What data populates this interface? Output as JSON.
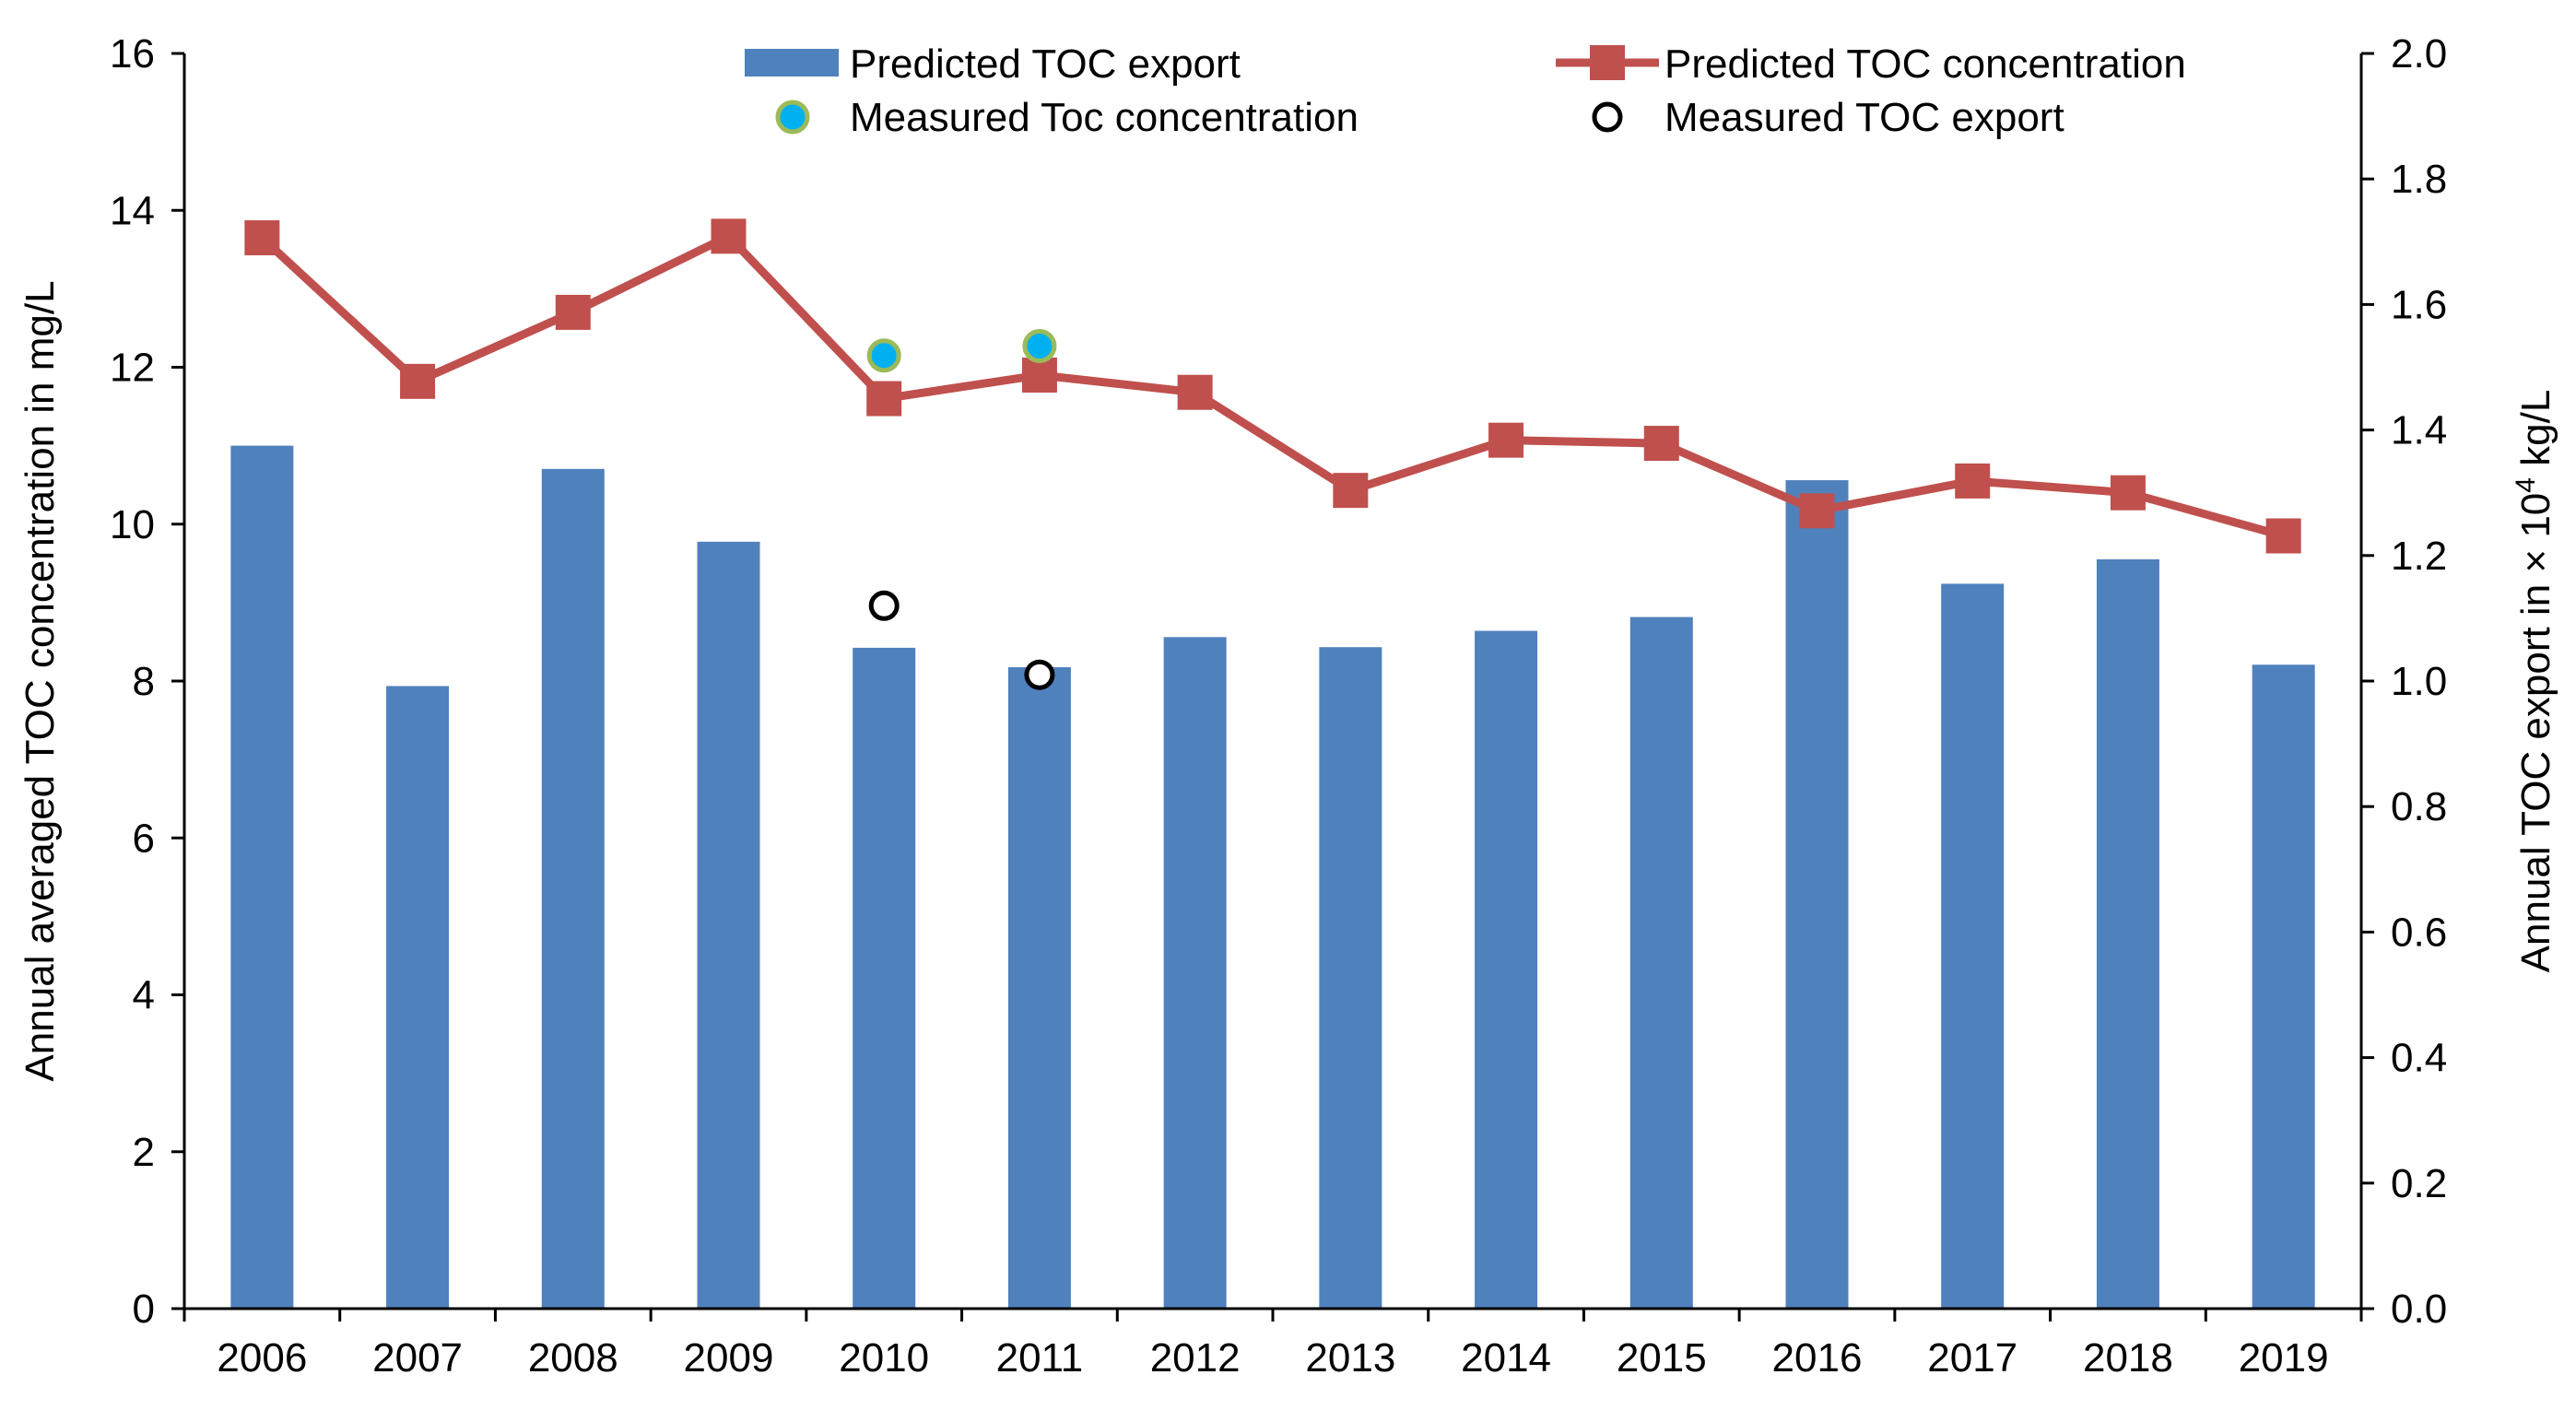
{
  "chart_data": {
    "type": "bar+line",
    "categories": [
      "2006",
      "2007",
      "2008",
      "2009",
      "2010",
      "2011",
      "2012",
      "2013",
      "2014",
      "2015",
      "2016",
      "2017",
      "2018",
      "2019"
    ],
    "series": [
      {
        "name": "Predicted TOC export",
        "kind": "bar",
        "axis": "right",
        "color": "#4F81BD",
        "values": [
          1.375,
          0.992,
          1.338,
          1.222,
          1.053,
          1.022,
          1.07,
          1.054,
          1.08,
          1.102,
          1.32,
          1.155,
          1.194,
          1.026
        ]
      },
      {
        "name": "Predicted TOC concentration",
        "kind": "line",
        "axis": "left",
        "color": "#C0504D",
        "values": [
          13.65,
          11.82,
          12.7,
          13.67,
          11.6,
          11.9,
          11.68,
          10.43,
          11.07,
          11.03,
          10.17,
          10.55,
          10.4,
          9.85
        ]
      },
      {
        "name": "Measured Toc concentration",
        "kind": "point",
        "axis": "left",
        "color": "#00B0F0",
        "edge_color": "#9BBB59",
        "points": [
          {
            "category": "2010",
            "value": 12.15
          },
          {
            "category": "2011",
            "value": 12.27
          }
        ]
      },
      {
        "name": "Measured TOC export",
        "kind": "point",
        "axis": "right",
        "color": "#000000",
        "points": [
          {
            "category": "2010",
            "value": 1.12
          },
          {
            "category": "2011",
            "value": 1.01
          }
        ]
      }
    ],
    "y_left": {
      "label": "Annual averaged TOC concentration in mg/L",
      "ylim": [
        0,
        16
      ],
      "ticks": [
        0,
        2,
        4,
        6,
        8,
        10,
        12,
        14,
        16
      ],
      "tick_labels": [
        "0",
        "2",
        "4",
        "6",
        "8",
        "10",
        "12",
        "14",
        "16"
      ]
    },
    "y_right": {
      "label_prefix": "Annual TOC export in × 10",
      "label_exponent": "4",
      "label_suffix": " kg/L",
      "ylim": [
        0,
        2
      ],
      "ticks": [
        0,
        0.2,
        0.4,
        0.6,
        0.8,
        1.0,
        1.2,
        1.4,
        1.6,
        1.8,
        2.0
      ],
      "tick_labels": [
        "0.0",
        "0.2",
        "0.4",
        "0.6",
        "0.8",
        "1.0",
        "1.2",
        "1.4",
        "1.6",
        "1.8",
        "2.0"
      ]
    },
    "xlabel": "",
    "title": "",
    "grid": false,
    "legend_position": "top"
  }
}
